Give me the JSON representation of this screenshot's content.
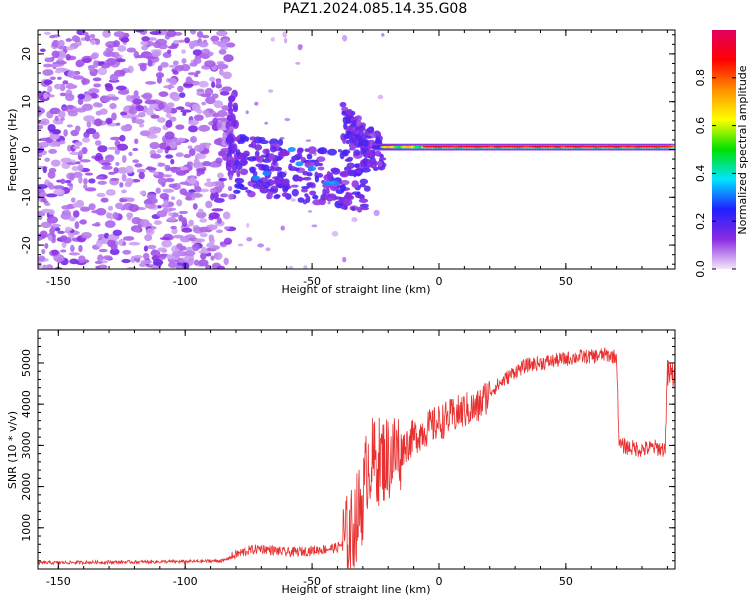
{
  "title": "PAZ1.2024.085.14.35.G08",
  "chart_data": [
    {
      "type": "heatmap",
      "panel": "spectrogram",
      "xlabel": "Height of straight line (km)",
      "ylabel": "Frequency (Hz)",
      "xlim": [
        -158,
        93
      ],
      "ylim": [
        -25,
        25
      ],
      "xticks": [
        "-150",
        "-100",
        "-50",
        "0",
        "50"
      ],
      "yticks": [
        "-20",
        "-10",
        "0",
        "10",
        "20"
      ],
      "colorbar": {
        "label": "Normalized spectral amplitude",
        "ticks": [
          "0.0",
          "0.2",
          "0.4",
          "0.6",
          "0.8"
        ],
        "range": [
          0,
          1
        ],
        "colormap": [
          "#f4e6fb",
          "#8a2be2",
          "#2020ff",
          "#00e5ff",
          "#00e000",
          "#ffff00",
          "#ff9000",
          "#ff0000",
          "#e00060"
        ]
      },
      "regions": [
        {
          "x_range": [
            -158,
            -82
          ],
          "freq_range": [
            -25,
            25
          ],
          "amplitude": "low (noise)"
        },
        {
          "x_range": [
            -82,
            -26
          ],
          "freq_range": [
            -12,
            3
          ],
          "amplitude": "medium"
        },
        {
          "x_range": [
            -38,
            -22
          ],
          "freq_range": [
            -12,
            8
          ],
          "amplitude": "medium"
        },
        {
          "x_range": [
            -25,
            93
          ],
          "freq_range": [
            -1,
            2
          ],
          "amplitude": "high (carrier line)"
        }
      ]
    },
    {
      "type": "line",
      "panel": "snr",
      "xlabel": "Height of straight line (km)",
      "ylabel": "SNR (10 * v/v)",
      "xlim": [
        -158,
        93
      ],
      "ylim": [
        0,
        5800
      ],
      "xticks": [
        "-150",
        "-100",
        "-50",
        "0",
        "50"
      ],
      "yticks": [
        "1000",
        "2000",
        "3000",
        "4000",
        "5000"
      ],
      "color": "#e83030",
      "x": [
        -158,
        -140,
        -120,
        -100,
        -85,
        -80,
        -75,
        -70,
        -65,
        -60,
        -55,
        -50,
        -45,
        -40,
        -35,
        -30,
        -28,
        -25,
        -20,
        -15,
        -10,
        -5,
        0,
        5,
        10,
        15,
        20,
        25,
        30,
        35,
        40,
        45,
        50,
        55,
        60,
        65,
        70,
        71,
        75,
        80,
        85,
        89,
        90,
        93
      ],
      "values": [
        150,
        160,
        170,
        180,
        200,
        350,
        450,
        500,
        450,
        400,
        420,
        450,
        480,
        520,
        800,
        1700,
        2600,
        2600,
        2700,
        2900,
        3200,
        3400,
        3550,
        3700,
        3850,
        3900,
        4300,
        4550,
        4800,
        4950,
        5000,
        5050,
        5100,
        5150,
        5150,
        5200,
        5150,
        3000,
        2950,
        2900,
        2950,
        2900,
        4700,
        4700
      ]
    }
  ]
}
